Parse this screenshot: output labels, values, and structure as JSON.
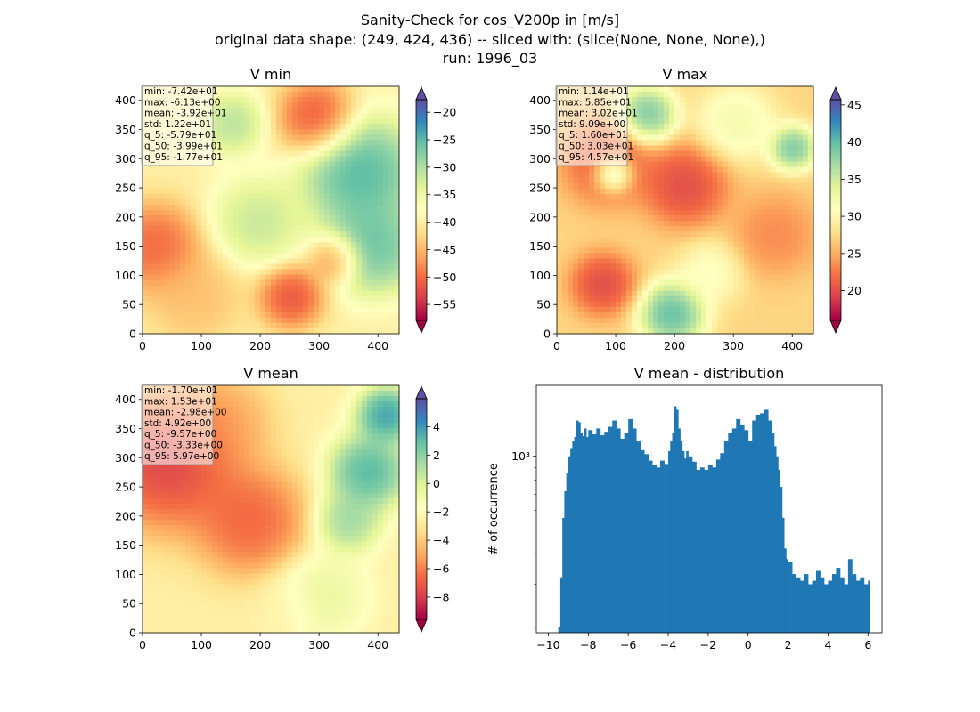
{
  "figure": {
    "title_lines": [
      "Sanity-Check for cos_V200p in [m/s]",
      "original data shape: (249, 424, 436) -- sliced with: (slice(None, None, None),)",
      "run: 1996_03"
    ]
  },
  "colormap": [
    "#9e0142",
    "#d53e4f",
    "#f46d43",
    "#fdae61",
    "#fee08b",
    "#ffffbf",
    "#e6f598",
    "#abdda4",
    "#66c2a5",
    "#3288bd",
    "#5e4fa2"
  ],
  "histogram_color": "#1f77b4",
  "panels": [
    {
      "title": "V min",
      "xticks": [
        "0",
        "100",
        "200",
        "300",
        "400"
      ],
      "yticks": [
        "0",
        "50",
        "100",
        "150",
        "200",
        "250",
        "300",
        "350",
        "400"
      ],
      "stats": [
        "min: -7.42e+01",
        "max: -6.13e+00",
        "mean: -3.92e+01",
        "std: 1.22e+01",
        "q_5: -5.79e+01",
        "q_50: -3.99e+01",
        "q_95: -1.77e+01"
      ],
      "colorbar": {
        "vmin": -57.9,
        "vmax": -17.7,
        "ticks": [
          -55,
          -50,
          -45,
          -40,
          -35,
          -30,
          -25,
          -20
        ]
      }
    },
    {
      "title": "V max",
      "xticks": [
        "0",
        "100",
        "200",
        "300",
        "400"
      ],
      "yticks": [
        "0",
        "50",
        "100",
        "150",
        "200",
        "250",
        "300",
        "350",
        "400"
      ],
      "stats": [
        "min: 1.14e+01",
        "max: 5.85e+01",
        "mean: 3.02e+01",
        "std: 9.09e+00",
        "q_5: 1.60e+01",
        "q_50: 3.03e+01",
        "q_95: 4.57e+01"
      ],
      "colorbar": {
        "vmin": 16.0,
        "vmax": 45.7,
        "ticks": [
          20,
          25,
          30,
          35,
          40,
          45
        ]
      }
    },
    {
      "title": "V mean",
      "xticks": [
        "0",
        "100",
        "200",
        "300",
        "400"
      ],
      "yticks": [
        "0",
        "50",
        "100",
        "150",
        "200",
        "250",
        "300",
        "350",
        "400"
      ],
      "stats": [
        "min: -1.70e+01",
        "max: 1.53e+01",
        "mean: -2.98e+00",
        "std: 4.92e+00",
        "q_5: -9.57e+00",
        "q_50: -3.33e+00",
        "q_95: 5.97e+00"
      ],
      "colorbar": {
        "vmin": -9.57,
        "vmax": 5.97,
        "ticks": [
          -8,
          -6,
          -4,
          -2,
          0,
          2,
          4
        ]
      }
    }
  ],
  "chart_data": [
    {
      "type": "heatmap",
      "title": "V min",
      "data_shape": [
        424,
        436
      ],
      "xlim": [
        0,
        436
      ],
      "ylim": [
        0,
        424
      ],
      "value_range": [
        -57.9,
        -17.7
      ]
    },
    {
      "type": "heatmap",
      "title": "V max",
      "data_shape": [
        424,
        436
      ],
      "xlim": [
        0,
        436
      ],
      "ylim": [
        0,
        424
      ],
      "value_range": [
        16.0,
        45.7
      ]
    },
    {
      "type": "heatmap",
      "title": "V mean",
      "data_shape": [
        424,
        436
      ],
      "xlim": [
        0,
        436
      ],
      "ylim": [
        0,
        424
      ],
      "value_range": [
        -9.57,
        5.97
      ]
    },
    {
      "type": "bar",
      "title": "V mean - distribution",
      "ylabel": "# of occurrence",
      "xlabel": "",
      "xlim": [
        -10.6,
        6.7
      ],
      "yscale": "log",
      "ylim": [
        190,
        1950
      ],
      "xticks": [
        "−10",
        "−8",
        "−6",
        "−4",
        "−2",
        "0",
        "2",
        "4",
        "6"
      ],
      "yticks": [
        "10³"
      ],
      "x": [
        -9.5,
        -9.4,
        -9.3,
        -9.2,
        -9.1,
        -9.0,
        -8.9,
        -8.8,
        -8.7,
        -8.6,
        -8.5,
        -8.4,
        -8.3,
        -8.2,
        -8.1,
        -8.0,
        -7.8,
        -7.6,
        -7.4,
        -7.2,
        -7.0,
        -6.8,
        -6.6,
        -6.4,
        -6.2,
        -6.0,
        -5.8,
        -5.6,
        -5.4,
        -5.2,
        -5.0,
        -4.8,
        -4.6,
        -4.4,
        -4.2,
        -4.0,
        -3.9,
        -3.8,
        -3.7,
        -3.6,
        -3.5,
        -3.4,
        -3.3,
        -3.2,
        -3.1,
        -3.0,
        -2.8,
        -2.6,
        -2.4,
        -2.2,
        -2.0,
        -1.8,
        -1.6,
        -1.4,
        -1.2,
        -1.0,
        -0.8,
        -0.6,
        -0.4,
        -0.2,
        0.0,
        0.2,
        0.4,
        0.6,
        0.8,
        1.0,
        1.2,
        1.3,
        1.4,
        1.5,
        1.6,
        1.7,
        1.8,
        1.9,
        2.0,
        2.2,
        2.4,
        2.6,
        2.8,
        3.0,
        3.2,
        3.4,
        3.6,
        3.8,
        4.0,
        4.2,
        4.4,
        4.6,
        4.8,
        5.0,
        5.2,
        5.4,
        5.6,
        5.8,
        6.0
      ],
      "values": [
        200,
        320,
        560,
        720,
        850,
        1000,
        1080,
        1150,
        1200,
        1400,
        1380,
        1250,
        1210,
        1300,
        1200,
        1280,
        1230,
        1300,
        1220,
        1260,
        1320,
        1400,
        1300,
        1180,
        1250,
        1420,
        1300,
        1150,
        1060,
        1020,
        960,
        920,
        900,
        960,
        930,
        1050,
        1150,
        1250,
        1600,
        1550,
        1300,
        1150,
        1050,
        980,
        1050,
        1000,
        950,
        880,
        900,
        880,
        920,
        900,
        970,
        1030,
        1150,
        1250,
        1300,
        1420,
        1350,
        1280,
        1150,
        1400,
        1480,
        1500,
        1550,
        1400,
        1250,
        1100,
        1000,
        880,
        750,
        560,
        420,
        380,
        370,
        330,
        320,
        310,
        330,
        300,
        310,
        340,
        320,
        300,
        310,
        330,
        350,
        320,
        300,
        380,
        330,
        310,
        320,
        300,
        310
      ]
    }
  ]
}
